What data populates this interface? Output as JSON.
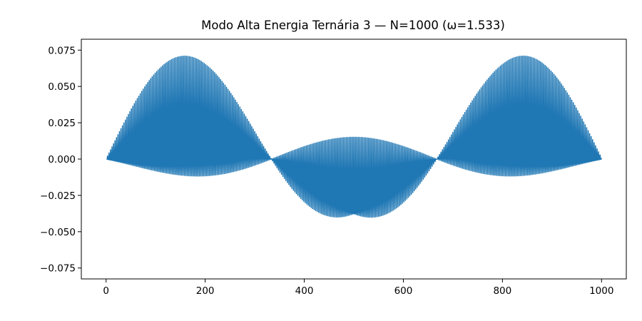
{
  "chart_data": {
    "type": "line",
    "title": "Modo Alta Energia Ternária 3 — N=1000 (ω=1.533)",
    "xlabel": "",
    "ylabel": "",
    "xlim": [
      -50,
      1050
    ],
    "ylim": [
      -0.0825,
      0.0825
    ],
    "x_ticks": [
      0,
      200,
      400,
      600,
      800,
      1000
    ],
    "x_tick_labels": [
      "0",
      "200",
      "400",
      "600",
      "800",
      "1000"
    ],
    "y_ticks": [
      0.075,
      0.05,
      0.025,
      0.0,
      -0.025,
      -0.05,
      -0.075
    ],
    "y_tick_labels": [
      "0.075",
      "0.050",
      "0.025",
      "0.000",
      "−0.025",
      "−0.050",
      "−0.075"
    ],
    "grid": false,
    "legend": "none",
    "series": [
      {
        "line_color": "#1f77b4",
        "x_range": [
          1,
          1000
        ],
        "envelope_amplitude": 0.0752,
        "envelope_lobes": 3,
        "oscillation_peak_count": 333
      }
    ]
  }
}
